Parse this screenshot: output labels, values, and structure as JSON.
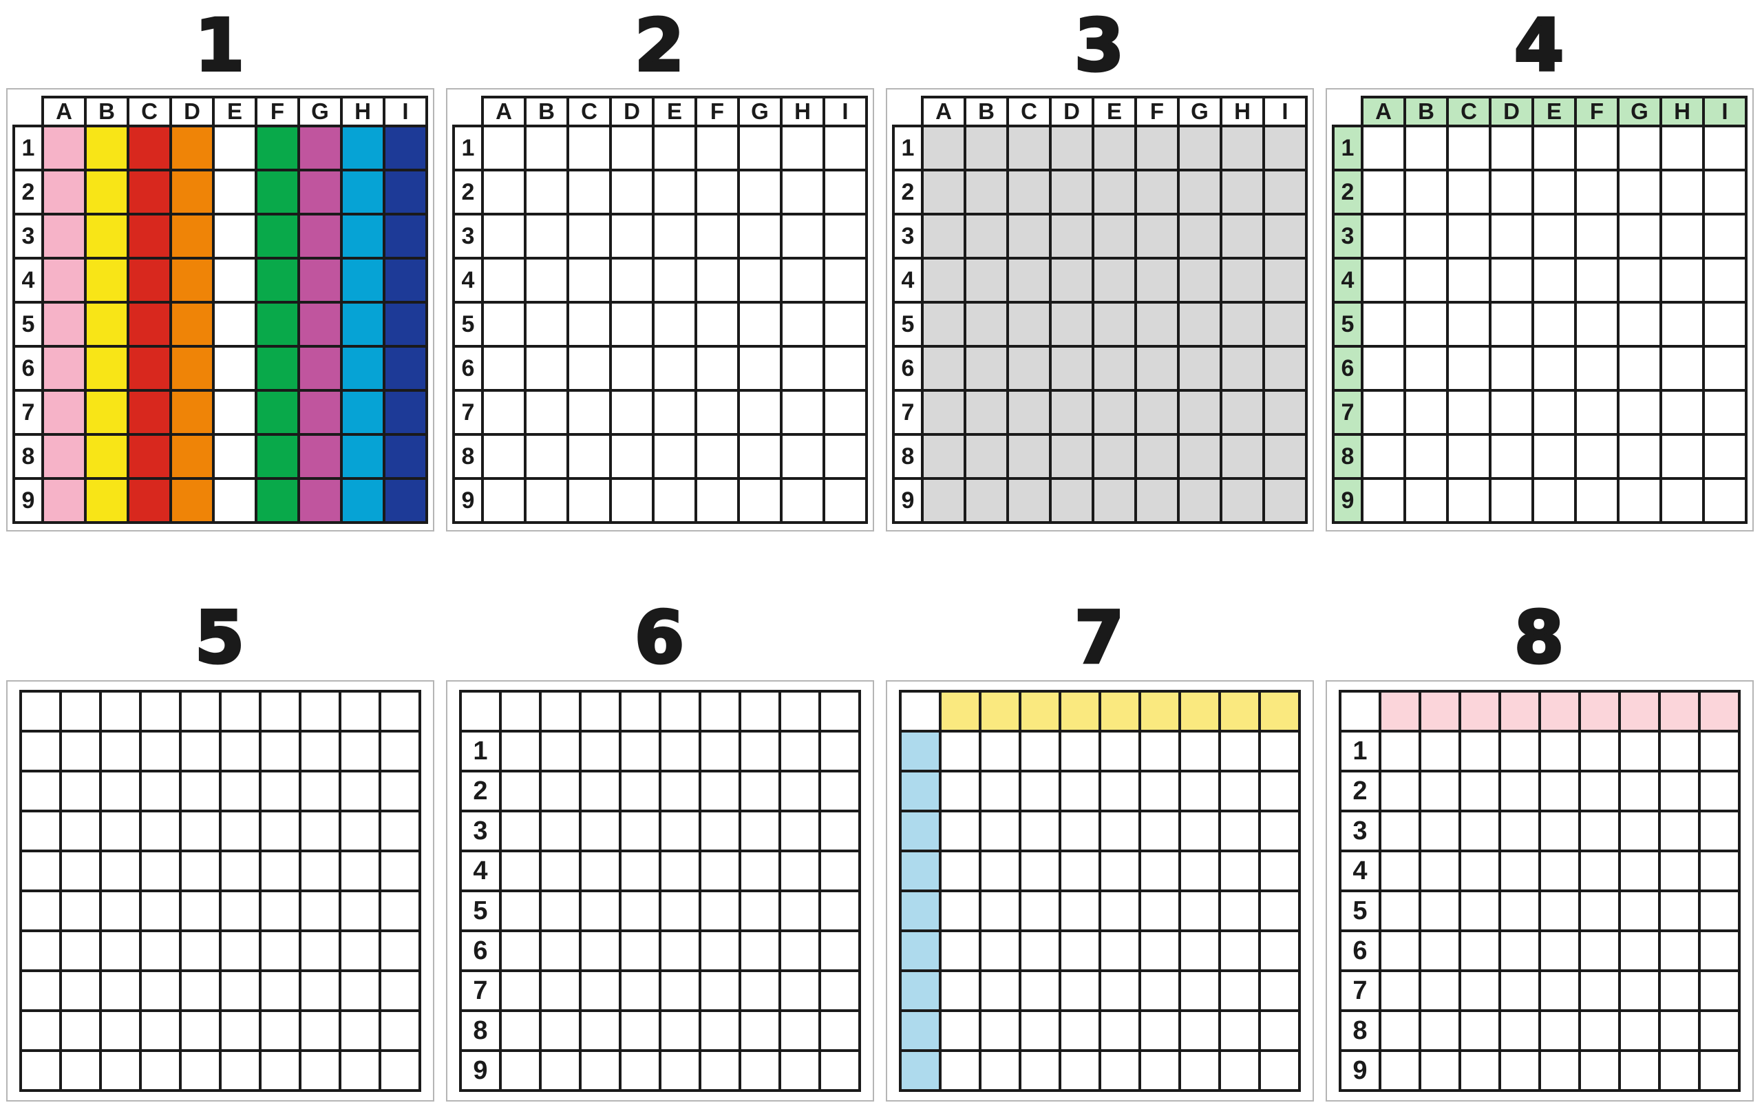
{
  "page": {
    "background": "#ffffff"
  },
  "styles": {
    "cell_border_color": "#1a1a1a",
    "panel_border_color": "#b5b5b5",
    "title_color": "#1a1a1a"
  },
  "grids": [
    {
      "title": "1",
      "kind": "headered",
      "column_headers": [
        "A",
        "B",
        "C",
        "D",
        "E",
        "F",
        "G",
        "H",
        "I"
      ],
      "row_labels": [
        "1",
        "2",
        "3",
        "4",
        "5",
        "6",
        "7",
        "8",
        "9"
      ],
      "header_fill": "#ffffff",
      "label_fill": "#ffffff",
      "cell_fill": "#ffffff",
      "column_fills": [
        "#f6b3c8",
        "#f8e517",
        "#d8281e",
        "#ef8407",
        "#ffffff",
        "#09a94a",
        "#c0559e",
        "#06a3d5",
        "#1d3a97"
      ]
    },
    {
      "title": "2",
      "kind": "headered",
      "column_headers": [
        "A",
        "B",
        "C",
        "D",
        "E",
        "F",
        "G",
        "H",
        "I"
      ],
      "row_labels": [
        "1",
        "2",
        "3",
        "4",
        "5",
        "6",
        "7",
        "8",
        "9"
      ],
      "header_fill": "#ffffff",
      "label_fill": "#ffffff",
      "cell_fill": "#ffffff"
    },
    {
      "title": "3",
      "kind": "headered",
      "column_headers": [
        "A",
        "B",
        "C",
        "D",
        "E",
        "F",
        "G",
        "H",
        "I"
      ],
      "row_labels": [
        "1",
        "2",
        "3",
        "4",
        "5",
        "6",
        "7",
        "8",
        "9"
      ],
      "header_fill": "#ffffff",
      "label_fill": "#ffffff",
      "cell_fill": "#d8d8d8"
    },
    {
      "title": "4",
      "kind": "headered",
      "column_headers": [
        "A",
        "B",
        "C",
        "D",
        "E",
        "F",
        "G",
        "H",
        "I"
      ],
      "row_labels": [
        "1",
        "2",
        "3",
        "4",
        "5",
        "6",
        "7",
        "8",
        "9"
      ],
      "header_fill": "#bfe7bf",
      "label_fill": "#bfe7bf",
      "cell_fill": "#ffffff"
    },
    {
      "title": "5",
      "kind": "flat",
      "rows": 10,
      "cols": 10,
      "cell_fill": "#ffffff"
    },
    {
      "title": "6",
      "kind": "flat",
      "rows": 10,
      "cols": 10,
      "cell_fill": "#ffffff",
      "first_column_labels": [
        "",
        "1",
        "2",
        "3",
        "4",
        "5",
        "6",
        "7",
        "8",
        "9"
      ]
    },
    {
      "title": "7",
      "kind": "flat",
      "rows": 10,
      "cols": 10,
      "cell_fill": "#ffffff",
      "top_row_fill": "#fae97f",
      "left_column_fill": "#aedaed",
      "corner_fill": "#ffffff"
    },
    {
      "title": "8",
      "kind": "flat",
      "rows": 10,
      "cols": 10,
      "cell_fill": "#ffffff",
      "top_row_fill": "#fbd5da",
      "first_column_labels": [
        "",
        "1",
        "2",
        "3",
        "4",
        "5",
        "6",
        "7",
        "8",
        "9"
      ]
    }
  ]
}
